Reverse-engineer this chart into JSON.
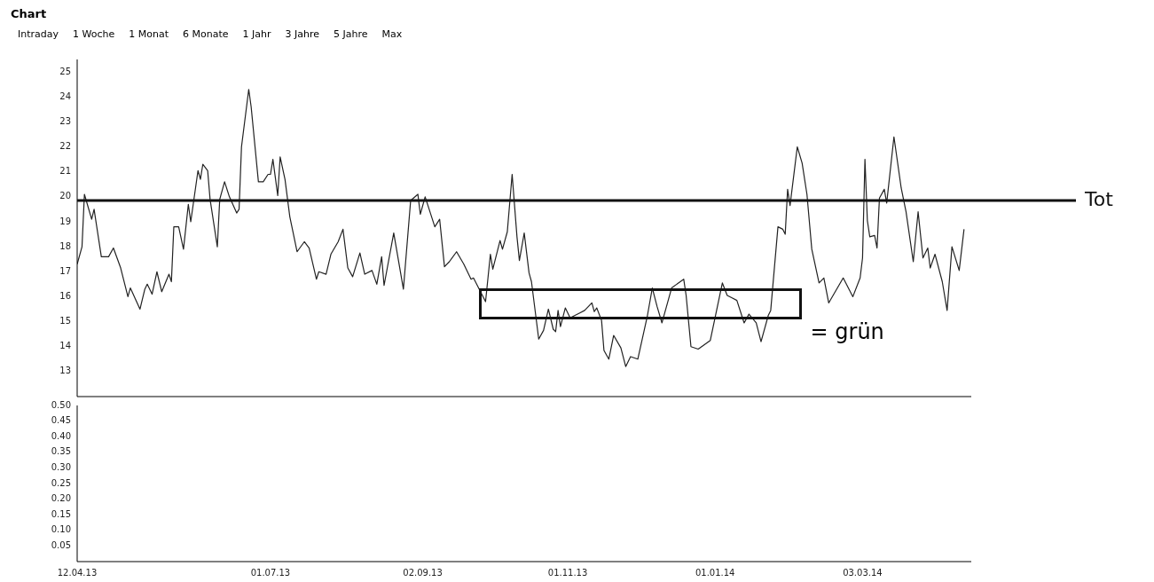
{
  "chart_data": [
    {
      "type": "line",
      "title": "Chart",
      "annotations": [
        "Intraday",
        "1 Woche",
        "1 Monat",
        "6 Monate",
        "1 Jahr",
        "3 Jahre",
        "5 Jahre",
        "Max",
        "= grün"
      ],
      "xlim": [
        "2013-04-12",
        "2014-04-17"
      ],
      "ylim": [
        12,
        25.5
      ],
      "yticks": [
        13,
        14,
        15,
        16,
        17,
        18,
        19,
        20,
        21,
        22,
        23,
        24,
        25
      ],
      "tick_labels": "y",
      "grid": false,
      "legend": false,
      "marker": "none",
      "line_style": "solid",
      "ref_lines": [
        {
          "axis": "y",
          "value": 19.85,
          "label": "Tot",
          "color": "#111111"
        }
      ],
      "series": [
        {
          "color": "#222222",
          "x": [
            "2013-04-12",
            "2013-04-14",
            "2013-04-15",
            "2013-04-18",
            "2013-04-19",
            "2013-04-22",
            "2013-04-25",
            "2013-04-27",
            "2013-04-30",
            "2013-05-03",
            "2013-05-04",
            "2013-05-08",
            "2013-05-10",
            "2013-05-11",
            "2013-05-13",
            "2013-05-15",
            "2013-05-17",
            "2013-05-20",
            "2013-05-21",
            "2013-05-22",
            "2013-05-24",
            "2013-05-26",
            "2013-05-28",
            "2013-05-29",
            "2013-06-01",
            "2013-06-02",
            "2013-06-03",
            "2013-06-05",
            "2013-06-06",
            "2013-06-09",
            "2013-06-10",
            "2013-06-12",
            "2013-06-14",
            "2013-06-17",
            "2013-06-18",
            "2013-06-19",
            "2013-06-22",
            "2013-06-23",
            "2013-06-26",
            "2013-06-28",
            "2013-06-30",
            "2013-07-01",
            "2013-07-02",
            "2013-07-04",
            "2013-07-05",
            "2013-07-07",
            "2013-07-09",
            "2013-07-12",
            "2013-07-15",
            "2013-07-17",
            "2013-07-20",
            "2013-07-21",
            "2013-07-24",
            "2013-07-26",
            "2013-07-29",
            "2013-07-31",
            "2013-08-02",
            "2013-08-04",
            "2013-08-07",
            "2013-08-09",
            "2013-08-12",
            "2013-08-14",
            "2013-08-16",
            "2013-08-17",
            "2013-08-21",
            "2013-08-25",
            "2013-08-28",
            "2013-08-31",
            "2013-09-01",
            "2013-09-03",
            "2013-09-07",
            "2013-09-09",
            "2013-09-11",
            "2013-09-13",
            "2013-09-16",
            "2013-09-19",
            "2013-09-22",
            "2013-09-23",
            "2013-09-28",
            "2013-09-30",
            "2013-10-01",
            "2013-10-04",
            "2013-10-05",
            "2013-10-07",
            "2013-10-09",
            "2013-10-11",
            "2013-10-12",
            "2013-10-14",
            "2013-10-16",
            "2013-10-17",
            "2013-10-20",
            "2013-10-22",
            "2013-10-24",
            "2013-10-26",
            "2013-10-27",
            "2013-10-28",
            "2013-10-29",
            "2013-10-31",
            "2013-11-02",
            "2013-11-06",
            "2013-11-08",
            "2013-11-11",
            "2013-11-12",
            "2013-11-13",
            "2013-11-15",
            "2013-11-16",
            "2013-11-18",
            "2013-11-20",
            "2013-11-23",
            "2013-11-25",
            "2013-11-27",
            "2013-11-30",
            "2013-12-04",
            "2013-12-06",
            "2013-12-08",
            "2013-12-10",
            "2013-12-14",
            "2013-12-19",
            "2013-12-20",
            "2013-12-22",
            "2013-12-25",
            "2013-12-30",
            "2014-01-04",
            "2014-01-06",
            "2014-01-08",
            "2014-01-10",
            "2014-01-13",
            "2014-01-15",
            "2014-01-18",
            "2014-01-20",
            "2014-01-23",
            "2014-01-24",
            "2014-01-27",
            "2014-01-29",
            "2014-01-30",
            "2014-01-31",
            "2014-02-01",
            "2014-02-04",
            "2014-02-06",
            "2014-02-08",
            "2014-02-10",
            "2014-02-13",
            "2014-02-15",
            "2014-02-17",
            "2014-02-23",
            "2014-02-27",
            "2014-03-02",
            "2014-03-03",
            "2014-03-04",
            "2014-03-05",
            "2014-03-06",
            "2014-03-08",
            "2014-03-09",
            "2014-03-10",
            "2014-03-12",
            "2014-03-13",
            "2014-03-16",
            "2014-03-19",
            "2014-03-21",
            "2014-03-24",
            "2014-03-26",
            "2014-03-28",
            "2014-03-30",
            "2014-03-31",
            "2014-04-02",
            "2014-04-05",
            "2014-04-07",
            "2014-04-09",
            "2014-04-12",
            "2014-04-14"
          ],
          "values": [
            17.3,
            18.0,
            20.1,
            19.1,
            19.5,
            17.6,
            17.6,
            17.95,
            17.15,
            16.0,
            16.35,
            15.5,
            16.3,
            16.5,
            16.1,
            17.0,
            16.2,
            16.9,
            16.6,
            18.8,
            18.8,
            17.9,
            19.7,
            19.0,
            21.05,
            20.7,
            21.3,
            21.05,
            19.9,
            18.0,
            19.9,
            20.6,
            20.0,
            19.35,
            19.5,
            22.0,
            24.3,
            23.6,
            20.6,
            20.6,
            20.9,
            20.9,
            21.5,
            20.05,
            21.6,
            20.7,
            19.2,
            17.8,
            18.2,
            17.95,
            16.7,
            17.0,
            16.9,
            17.7,
            18.2,
            18.7,
            17.15,
            16.8,
            17.75,
            16.9,
            17.05,
            16.5,
            17.6,
            16.45,
            18.55,
            16.3,
            19.85,
            20.1,
            19.3,
            20.0,
            18.8,
            19.1,
            17.2,
            17.4,
            17.8,
            17.3,
            16.7,
            16.75,
            15.8,
            17.7,
            17.1,
            18.25,
            17.9,
            18.6,
            20.9,
            18.4,
            17.45,
            18.55,
            16.95,
            16.6,
            14.3,
            14.65,
            15.5,
            14.7,
            14.6,
            15.45,
            14.8,
            15.55,
            15.15,
            15.35,
            15.45,
            15.75,
            15.4,
            15.55,
            15.05,
            13.85,
            13.5,
            14.45,
            13.95,
            13.2,
            13.6,
            13.5,
            15.25,
            16.35,
            15.6,
            14.95,
            16.35,
            16.7,
            16.05,
            14.0,
            13.9,
            14.25,
            16.55,
            16.05,
            15.95,
            15.85,
            14.95,
            15.3,
            14.95,
            14.2,
            15.25,
            15.45,
            18.8,
            18.7,
            18.5,
            20.3,
            19.65,
            22.0,
            21.35,
            20.1,
            17.9,
            16.55,
            16.75,
            15.75,
            16.75,
            16.0,
            16.75,
            17.55,
            21.5,
            19.05,
            18.4,
            18.45,
            17.95,
            19.95,
            20.3,
            19.75,
            22.4,
            20.35,
            19.4,
            17.4,
            19.4,
            17.55,
            17.95,
            17.15,
            17.7,
            16.6,
            15.45,
            18.0,
            17.05,
            18.7
          ]
        }
      ]
    },
    {
      "type": "line",
      "xlim": [
        "2013-04-12",
        "2014-04-17"
      ],
      "xticks": [
        {
          "value": "2013-04-12",
          "label": "12.04.13"
        },
        {
          "value": "2013-07-01",
          "label": "01.07.13"
        },
        {
          "value": "2013-09-02",
          "label": "02.09.13"
        },
        {
          "value": "2013-11-01",
          "label": "01.11.13"
        },
        {
          "value": "2014-01-01",
          "label": "01.01.14"
        },
        {
          "value": "2014-03-03",
          "label": "03.03.14"
        }
      ],
      "ylim": [
        0,
        0.5
      ],
      "yticks": [
        {
          "value": 0.05,
          "label": "0.05"
        },
        {
          "value": 0.1,
          "label": "0.10"
        },
        {
          "value": 0.15,
          "label": "0.15"
        },
        {
          "value": 0.2,
          "label": "0.20"
        },
        {
          "value": 0.25,
          "label": "0.25"
        },
        {
          "value": 0.3,
          "label": "0.30"
        },
        {
          "value": 0.35,
          "label": "0.35"
        },
        {
          "value": 0.4,
          "label": "0.40"
        },
        {
          "value": 0.45,
          "label": "0.45"
        },
        {
          "value": 0.5,
          "label": "0.50"
        }
      ],
      "grid": false,
      "legend": false
    }
  ]
}
